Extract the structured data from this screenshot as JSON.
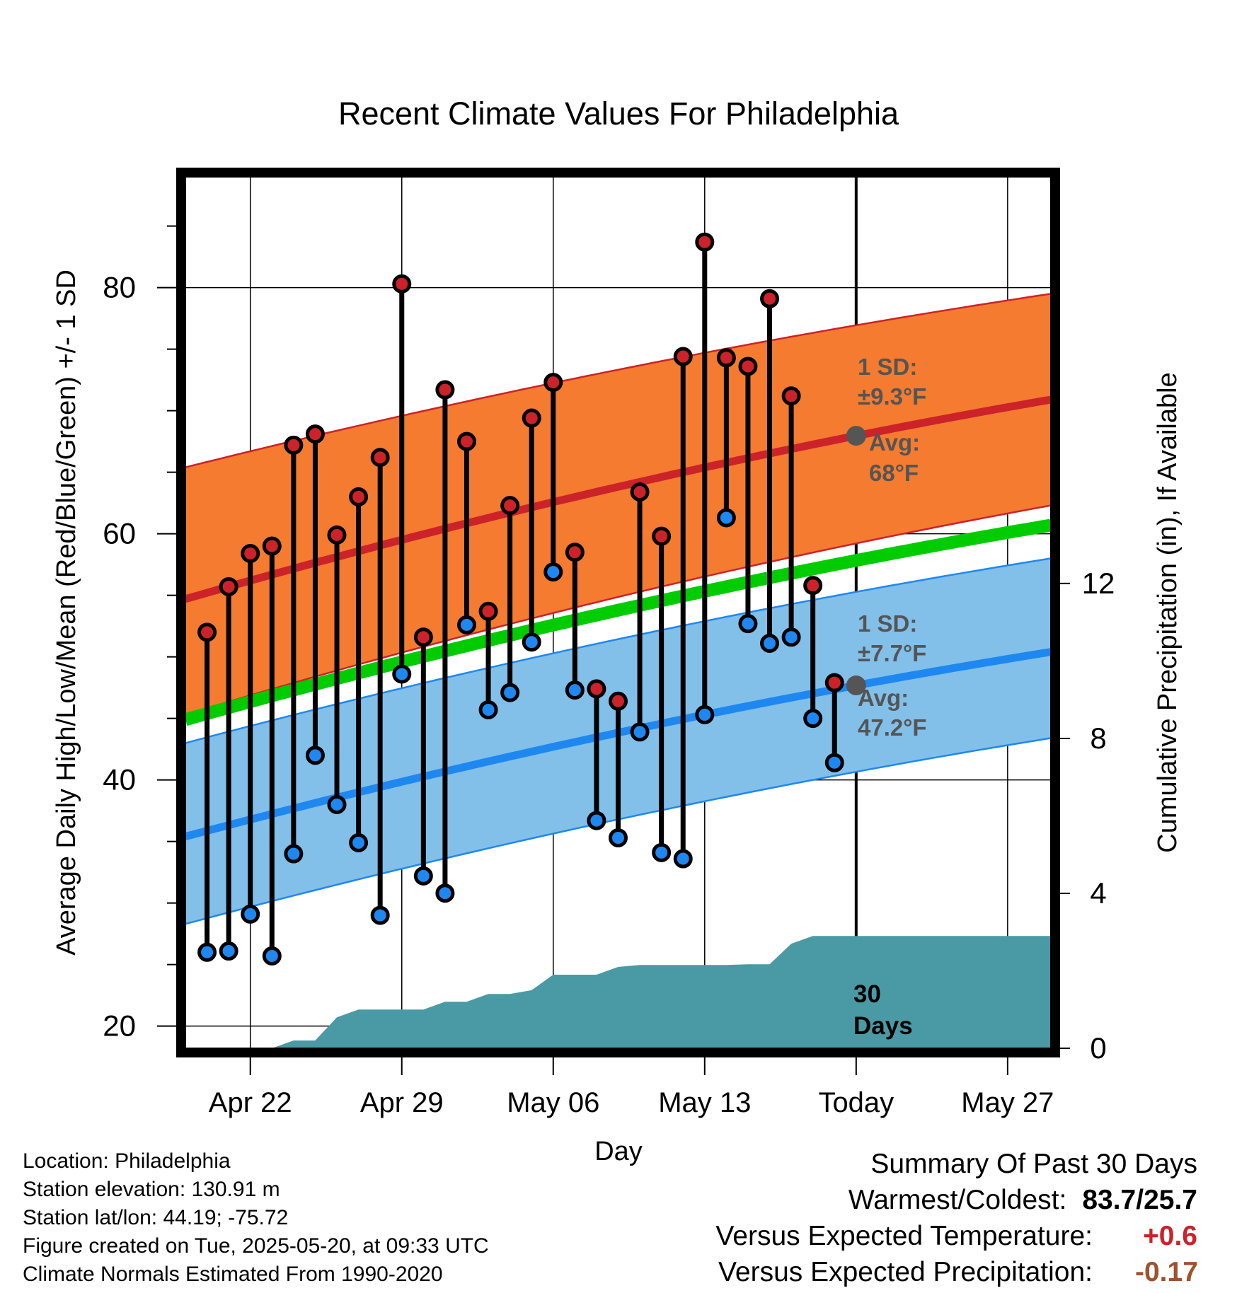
{
  "chart_data": {
    "type": "line",
    "title": "Recent Climate Values For Philadelphia",
    "xlabel": "Day",
    "ylabel": "Average Daily High/Low/Mean (Red/Blue/Green) +/- 1 SD",
    "y2label": "Cumulative Precipitation (in), If Available",
    "ylim": [
      18.2,
      89
    ],
    "y2lim": [
      0,
      22.5
    ],
    "yticks": [
      "20",
      "40",
      "60",
      "80"
    ],
    "y2ticks": [
      "0",
      "4",
      "8",
      "12"
    ],
    "x_tick_labels": [
      "Apr 22",
      "Apr 29",
      "May 06",
      "May 13",
      "Today",
      "May 27"
    ],
    "x_tick_days": [
      22,
      29,
      36,
      43,
      50,
      57
    ],
    "x_range_days": [
      19,
      59
    ],
    "today_day": 50,
    "grid": true,
    "observations": {
      "days": [
        20,
        21,
        22,
        23,
        24,
        25,
        26,
        27,
        28,
        29,
        30,
        31,
        32,
        33,
        34,
        35,
        36,
        37,
        38,
        39,
        40,
        41,
        42,
        43,
        44,
        45,
        46,
        47,
        48,
        49
      ],
      "high": [
        52.0,
        55.7,
        58.4,
        59.0,
        67.2,
        68.1,
        59.9,
        63.0,
        66.2,
        80.3,
        51.6,
        71.7,
        67.5,
        53.7,
        62.3,
        69.4,
        72.3,
        58.5,
        47.4,
        46.4,
        63.4,
        59.8,
        74.4,
        83.7,
        74.3,
        73.6,
        79.1,
        71.2,
        55.8,
        47.9
      ],
      "low": [
        26.0,
        26.1,
        29.1,
        25.7,
        34.0,
        42.0,
        38.0,
        34.9,
        29.0,
        48.6,
        32.2,
        30.8,
        52.6,
        45.7,
        47.1,
        51.2,
        56.9,
        47.3,
        36.7,
        35.3,
        43.9,
        34.1,
        33.6,
        45.3,
        61.3,
        52.7,
        51.1,
        51.6,
        45.0,
        41.4
      ]
    },
    "normals": {
      "days": [
        19,
        59
      ],
      "high_mean": [
        54.7,
        70.9
      ],
      "high_sd_upper": [
        65.4,
        79.5
      ],
      "high_sd_lower": [
        45.3,
        62.3
      ],
      "mean": [
        44.9,
        60.7
      ],
      "low_mean": [
        35.4,
        50.4
      ],
      "low_sd_upper": [
        43.0,
        58.0
      ],
      "low_sd_lower": [
        28.3,
        43.4
      ]
    },
    "precipitation": {
      "days": [
        19,
        20,
        21,
        22,
        23,
        24,
        25,
        26,
        27,
        28,
        29,
        30,
        31,
        32,
        33,
        34,
        35,
        36,
        37,
        38,
        39,
        40,
        41,
        42,
        43,
        44,
        45,
        46,
        47,
        48,
        49,
        50,
        59
      ],
      "cumulative": [
        0,
        0,
        0,
        0,
        0,
        0.2,
        0.2,
        0.8,
        1.0,
        1.0,
        1.0,
        1.0,
        1.2,
        1.2,
        1.4,
        1.4,
        1.5,
        1.9,
        1.9,
        1.9,
        2.1,
        2.15,
        2.15,
        2.15,
        2.15,
        2.15,
        2.17,
        2.17,
        2.7,
        2.9,
        2.9,
        2.9,
        2.9
      ]
    },
    "colors": {
      "high_band": "#f47b2f",
      "high_line": "#cc2229",
      "mean_line": "#00cc00",
      "low_band": "#82c0ea",
      "low_line": "#1e88f0",
      "precip": "#4a9aa5",
      "annotation": "#555555",
      "high_dot": "#cc2229",
      "low_dot": "#1e88f0"
    },
    "annotations": {
      "high_sd_label": "1 SD:",
      "high_sd_value": "±9.3°F",
      "high_avg_label": "Avg:",
      "high_avg_value": "68°F",
      "low_sd_label": "1 SD:",
      "low_sd_value": "±7.7°F",
      "low_avg_label": "Avg:",
      "low_avg_value": "47.2°F",
      "window_number": "30",
      "window_unit": "Days"
    }
  },
  "footer": {
    "location": "Location: Philadelphia",
    "elevation": "Station elevation: 130.91 m",
    "latlon": "Station lat/lon: 44.19; -75.72",
    "created": "Figure created on Tue, 2025-05-20, at 09:33 UTC",
    "normals": "Climate Normals Estimated From 1990-2020"
  },
  "summary": {
    "title": "Summary Of Past 30 Days",
    "warm_cold_label": "Warmest/Coldest:",
    "warm_cold_value": "83.7/25.7",
    "temp_label": "Versus Expected Temperature:",
    "temp_value": "+0.6",
    "temp_color": "#cc2229",
    "precip_label": "Versus Expected Precipitation:",
    "precip_value": "-0.17",
    "precip_color": "#a0522d"
  }
}
